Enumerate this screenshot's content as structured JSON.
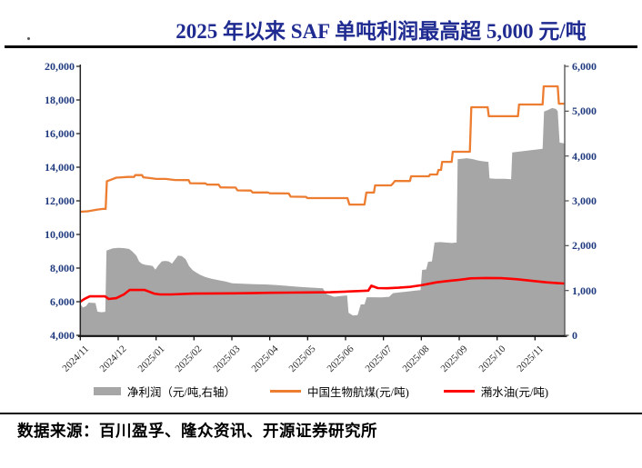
{
  "title": "2025 年以来 SAF 单吨利润最高超 5,000 元/吨",
  "source_note": "数据来源：百川盈孚、隆众资讯、开源证券研究所",
  "legend": [
    {
      "label": "净利润（元/吨,右轴）",
      "color": "#A6A6A6",
      "swatch": "area"
    },
    {
      "label": "中国生物航煤(元/吨)",
      "color": "#ED7D31",
      "swatch": "line"
    },
    {
      "label": "潲水油(元/吨)",
      "color": "#FE0000",
      "swatch": "line"
    }
  ],
  "chart_data": {
    "type": "area",
    "x_unit": "months since 2024/11",
    "x_tick_labels": [
      "2024/11",
      "2024/12",
      "2025/01",
      "2025/02",
      "2025/03",
      "2025/04",
      "2025/05",
      "2025/06",
      "2025/07",
      "2025/08",
      "2025/09",
      "2025/10",
      "2025/11"
    ],
    "x_range": [
      0,
      12.78
    ],
    "grid": "off",
    "legend_position": "bottom",
    "left_axis": {
      "min": 4000,
      "max": 20000,
      "step": 2000,
      "ticks": [
        {
          "value": 20000,
          "label": "20,000"
        },
        {
          "value": 18000,
          "label": "18,000"
        },
        {
          "value": 16000,
          "label": "16,000"
        },
        {
          "value": 14000,
          "label": "14,000"
        },
        {
          "value": 12000,
          "label": "12,000"
        },
        {
          "value": 10000,
          "label": "10,000"
        },
        {
          "value": 8000,
          "label": "8,000"
        },
        {
          "value": 6000,
          "label": "6,000"
        },
        {
          "value": 4000,
          "label": "4,000"
        }
      ]
    },
    "right_axis": {
      "min": 0,
      "max": 6000,
      "step": 1000,
      "ticks": [
        {
          "value": 6000,
          "label": "6,000"
        },
        {
          "value": 5000,
          "label": "5,000"
        },
        {
          "value": 4000,
          "label": "4,000"
        },
        {
          "value": 3000,
          "label": "3,000"
        },
        {
          "value": 2000,
          "label": "2,000"
        },
        {
          "value": 1000,
          "label": "1,000"
        },
        {
          "value": 0,
          "label": "0"
        }
      ]
    },
    "series": [
      {
        "name": "净利润（元/吨,右轴）",
        "type": "area",
        "axis": "right",
        "color": "#A6A6A6",
        "points": [
          [
            0,
            690
          ],
          [
            0.07,
            620
          ],
          [
            0.15,
            650
          ],
          [
            0.22,
            730
          ],
          [
            0.4,
            720
          ],
          [
            0.45,
            530
          ],
          [
            0.55,
            515
          ],
          [
            0.66,
            525
          ],
          [
            0.69,
            1890
          ],
          [
            0.86,
            1940
          ],
          [
            1.0,
            1950
          ],
          [
            1.14,
            1945
          ],
          [
            1.29,
            1925
          ],
          [
            1.38,
            1865
          ],
          [
            1.48,
            1775
          ],
          [
            1.55,
            1650
          ],
          [
            1.62,
            1600
          ],
          [
            1.72,
            1570
          ],
          [
            1.82,
            1560
          ],
          [
            1.91,
            1545
          ],
          [
            1.98,
            1465
          ],
          [
            2.06,
            1560
          ],
          [
            2.15,
            1650
          ],
          [
            2.25,
            1660
          ],
          [
            2.34,
            1645
          ],
          [
            2.42,
            1600
          ],
          [
            2.49,
            1680
          ],
          [
            2.58,
            1780
          ],
          [
            2.68,
            1765
          ],
          [
            2.78,
            1700
          ],
          [
            2.87,
            1545
          ],
          [
            2.97,
            1450
          ],
          [
            3.06,
            1400
          ],
          [
            3.16,
            1350
          ],
          [
            3.3,
            1300
          ],
          [
            3.45,
            1265
          ],
          [
            3.64,
            1230
          ],
          [
            3.83,
            1200
          ],
          [
            4.02,
            1160
          ],
          [
            4.3,
            1150
          ],
          [
            4.6,
            1140
          ],
          [
            4.9,
            1135
          ],
          [
            5.2,
            1120
          ],
          [
            5.5,
            1100
          ],
          [
            5.8,
            1080
          ],
          [
            6.1,
            1065
          ],
          [
            6.4,
            1050
          ],
          [
            6.5,
            920
          ],
          [
            6.7,
            860
          ],
          [
            6.9,
            880
          ],
          [
            7.04,
            890
          ],
          [
            7.08,
            500
          ],
          [
            7.2,
            440
          ],
          [
            7.32,
            455
          ],
          [
            7.4,
            690
          ],
          [
            7.5,
            690
          ],
          [
            7.56,
            850
          ],
          [
            7.75,
            850
          ],
          [
            7.95,
            845
          ],
          [
            8.15,
            860
          ],
          [
            8.25,
            940
          ],
          [
            8.45,
            960
          ],
          [
            8.65,
            980
          ],
          [
            8.85,
            1000
          ],
          [
            8.98,
            1010
          ],
          [
            9.02,
            1460
          ],
          [
            9.13,
            1470
          ],
          [
            9.18,
            1640
          ],
          [
            9.28,
            1650
          ],
          [
            9.35,
            2070
          ],
          [
            9.5,
            2080
          ],
          [
            9.65,
            2070
          ],
          [
            9.8,
            2060
          ],
          [
            9.93,
            2070
          ],
          [
            9.96,
            3930
          ],
          [
            10.1,
            3940
          ],
          [
            10.2,
            3950
          ],
          [
            10.36,
            3930
          ],
          [
            10.5,
            3900
          ],
          [
            10.65,
            3880
          ],
          [
            10.77,
            3870
          ],
          [
            10.8,
            3500
          ],
          [
            10.95,
            3490
          ],
          [
            11.2,
            3490
          ],
          [
            11.37,
            3480
          ],
          [
            11.4,
            4080
          ],
          [
            11.6,
            4100
          ],
          [
            11.8,
            4120
          ],
          [
            12.0,
            4140
          ],
          [
            12.2,
            4160
          ],
          [
            12.24,
            4990
          ],
          [
            12.35,
            5030
          ],
          [
            12.45,
            5070
          ],
          [
            12.55,
            5050
          ],
          [
            12.6,
            5000
          ],
          [
            12.65,
            4300
          ],
          [
            12.78,
            4280
          ]
        ]
      },
      {
        "name": "中国生物航煤(元/吨)",
        "type": "line",
        "axis": "left",
        "color": "#ED7D31",
        "points": [
          [
            0,
            11350
          ],
          [
            0.2,
            11380
          ],
          [
            0.3,
            11420
          ],
          [
            0.45,
            11480
          ],
          [
            0.6,
            11520
          ],
          [
            0.67,
            11520
          ],
          [
            0.7,
            13170
          ],
          [
            0.8,
            13250
          ],
          [
            0.95,
            13380
          ],
          [
            1.1,
            13400
          ],
          [
            1.25,
            13420
          ],
          [
            1.42,
            13420
          ],
          [
            1.45,
            13530
          ],
          [
            1.63,
            13530
          ],
          [
            1.66,
            13400
          ],
          [
            1.85,
            13350
          ],
          [
            2.0,
            13300
          ],
          [
            2.25,
            13300
          ],
          [
            2.5,
            13240
          ],
          [
            2.86,
            13230
          ],
          [
            2.9,
            13050
          ],
          [
            3.3,
            13040
          ],
          [
            3.35,
            12970
          ],
          [
            3.65,
            12960
          ],
          [
            3.7,
            12800
          ],
          [
            4.1,
            12790
          ],
          [
            4.15,
            12620
          ],
          [
            4.5,
            12610
          ],
          [
            4.55,
            12500
          ],
          [
            4.95,
            12500
          ],
          [
            5.0,
            12450
          ],
          [
            5.5,
            12440
          ],
          [
            5.55,
            12250
          ],
          [
            5.95,
            12240
          ],
          [
            6.0,
            12160
          ],
          [
            7.05,
            12160
          ],
          [
            7.1,
            11780
          ],
          [
            7.5,
            11780
          ],
          [
            7.55,
            12490
          ],
          [
            7.75,
            12490
          ],
          [
            7.78,
            12920
          ],
          [
            8.2,
            12920
          ],
          [
            8.25,
            13030
          ],
          [
            8.3,
            13180
          ],
          [
            8.7,
            13180
          ],
          [
            8.73,
            13460
          ],
          [
            9.2,
            13460
          ],
          [
            9.23,
            13570
          ],
          [
            9.42,
            13570
          ],
          [
            9.45,
            13840
          ],
          [
            9.52,
            13840
          ],
          [
            9.55,
            14320
          ],
          [
            9.8,
            14320
          ],
          [
            9.83,
            14920
          ],
          [
            10.28,
            14920
          ],
          [
            10.32,
            17570
          ],
          [
            10.75,
            17570
          ],
          [
            10.78,
            17030
          ],
          [
            11.55,
            17030
          ],
          [
            11.58,
            17730
          ],
          [
            12.2,
            17730
          ],
          [
            12.23,
            18810
          ],
          [
            12.6,
            18810
          ],
          [
            12.63,
            17780
          ],
          [
            12.78,
            17780
          ]
        ]
      },
      {
        "name": "潲水油(元/吨)",
        "type": "line",
        "axis": "left",
        "color": "#FE0000",
        "points": [
          [
            0,
            6000
          ],
          [
            0.1,
            6150
          ],
          [
            0.25,
            6320
          ],
          [
            0.65,
            6320
          ],
          [
            0.75,
            6160
          ],
          [
            0.95,
            6210
          ],
          [
            1.15,
            6430
          ],
          [
            1.3,
            6700
          ],
          [
            1.7,
            6700
          ],
          [
            1.8,
            6610
          ],
          [
            1.95,
            6480
          ],
          [
            2.1,
            6430
          ],
          [
            2.4,
            6430
          ],
          [
            2.7,
            6460
          ],
          [
            3.0,
            6480
          ],
          [
            3.5,
            6490
          ],
          [
            4.0,
            6500
          ],
          [
            4.5,
            6510
          ],
          [
            5.0,
            6530
          ],
          [
            5.5,
            6540
          ],
          [
            6.0,
            6550
          ],
          [
            6.6,
            6560
          ],
          [
            7.0,
            6600
          ],
          [
            7.4,
            6640
          ],
          [
            7.6,
            6660
          ],
          [
            7.68,
            6950
          ],
          [
            7.85,
            6810
          ],
          [
            8.1,
            6800
          ],
          [
            8.4,
            6830
          ],
          [
            8.7,
            6880
          ],
          [
            9.0,
            6980
          ],
          [
            9.4,
            7150
          ],
          [
            9.7,
            7230
          ],
          [
            10.0,
            7300
          ],
          [
            10.3,
            7390
          ],
          [
            10.7,
            7410
          ],
          [
            11.1,
            7400
          ],
          [
            11.5,
            7340
          ],
          [
            11.9,
            7250
          ],
          [
            12.3,
            7150
          ],
          [
            12.6,
            7100
          ],
          [
            12.78,
            7080
          ]
        ]
      }
    ]
  }
}
